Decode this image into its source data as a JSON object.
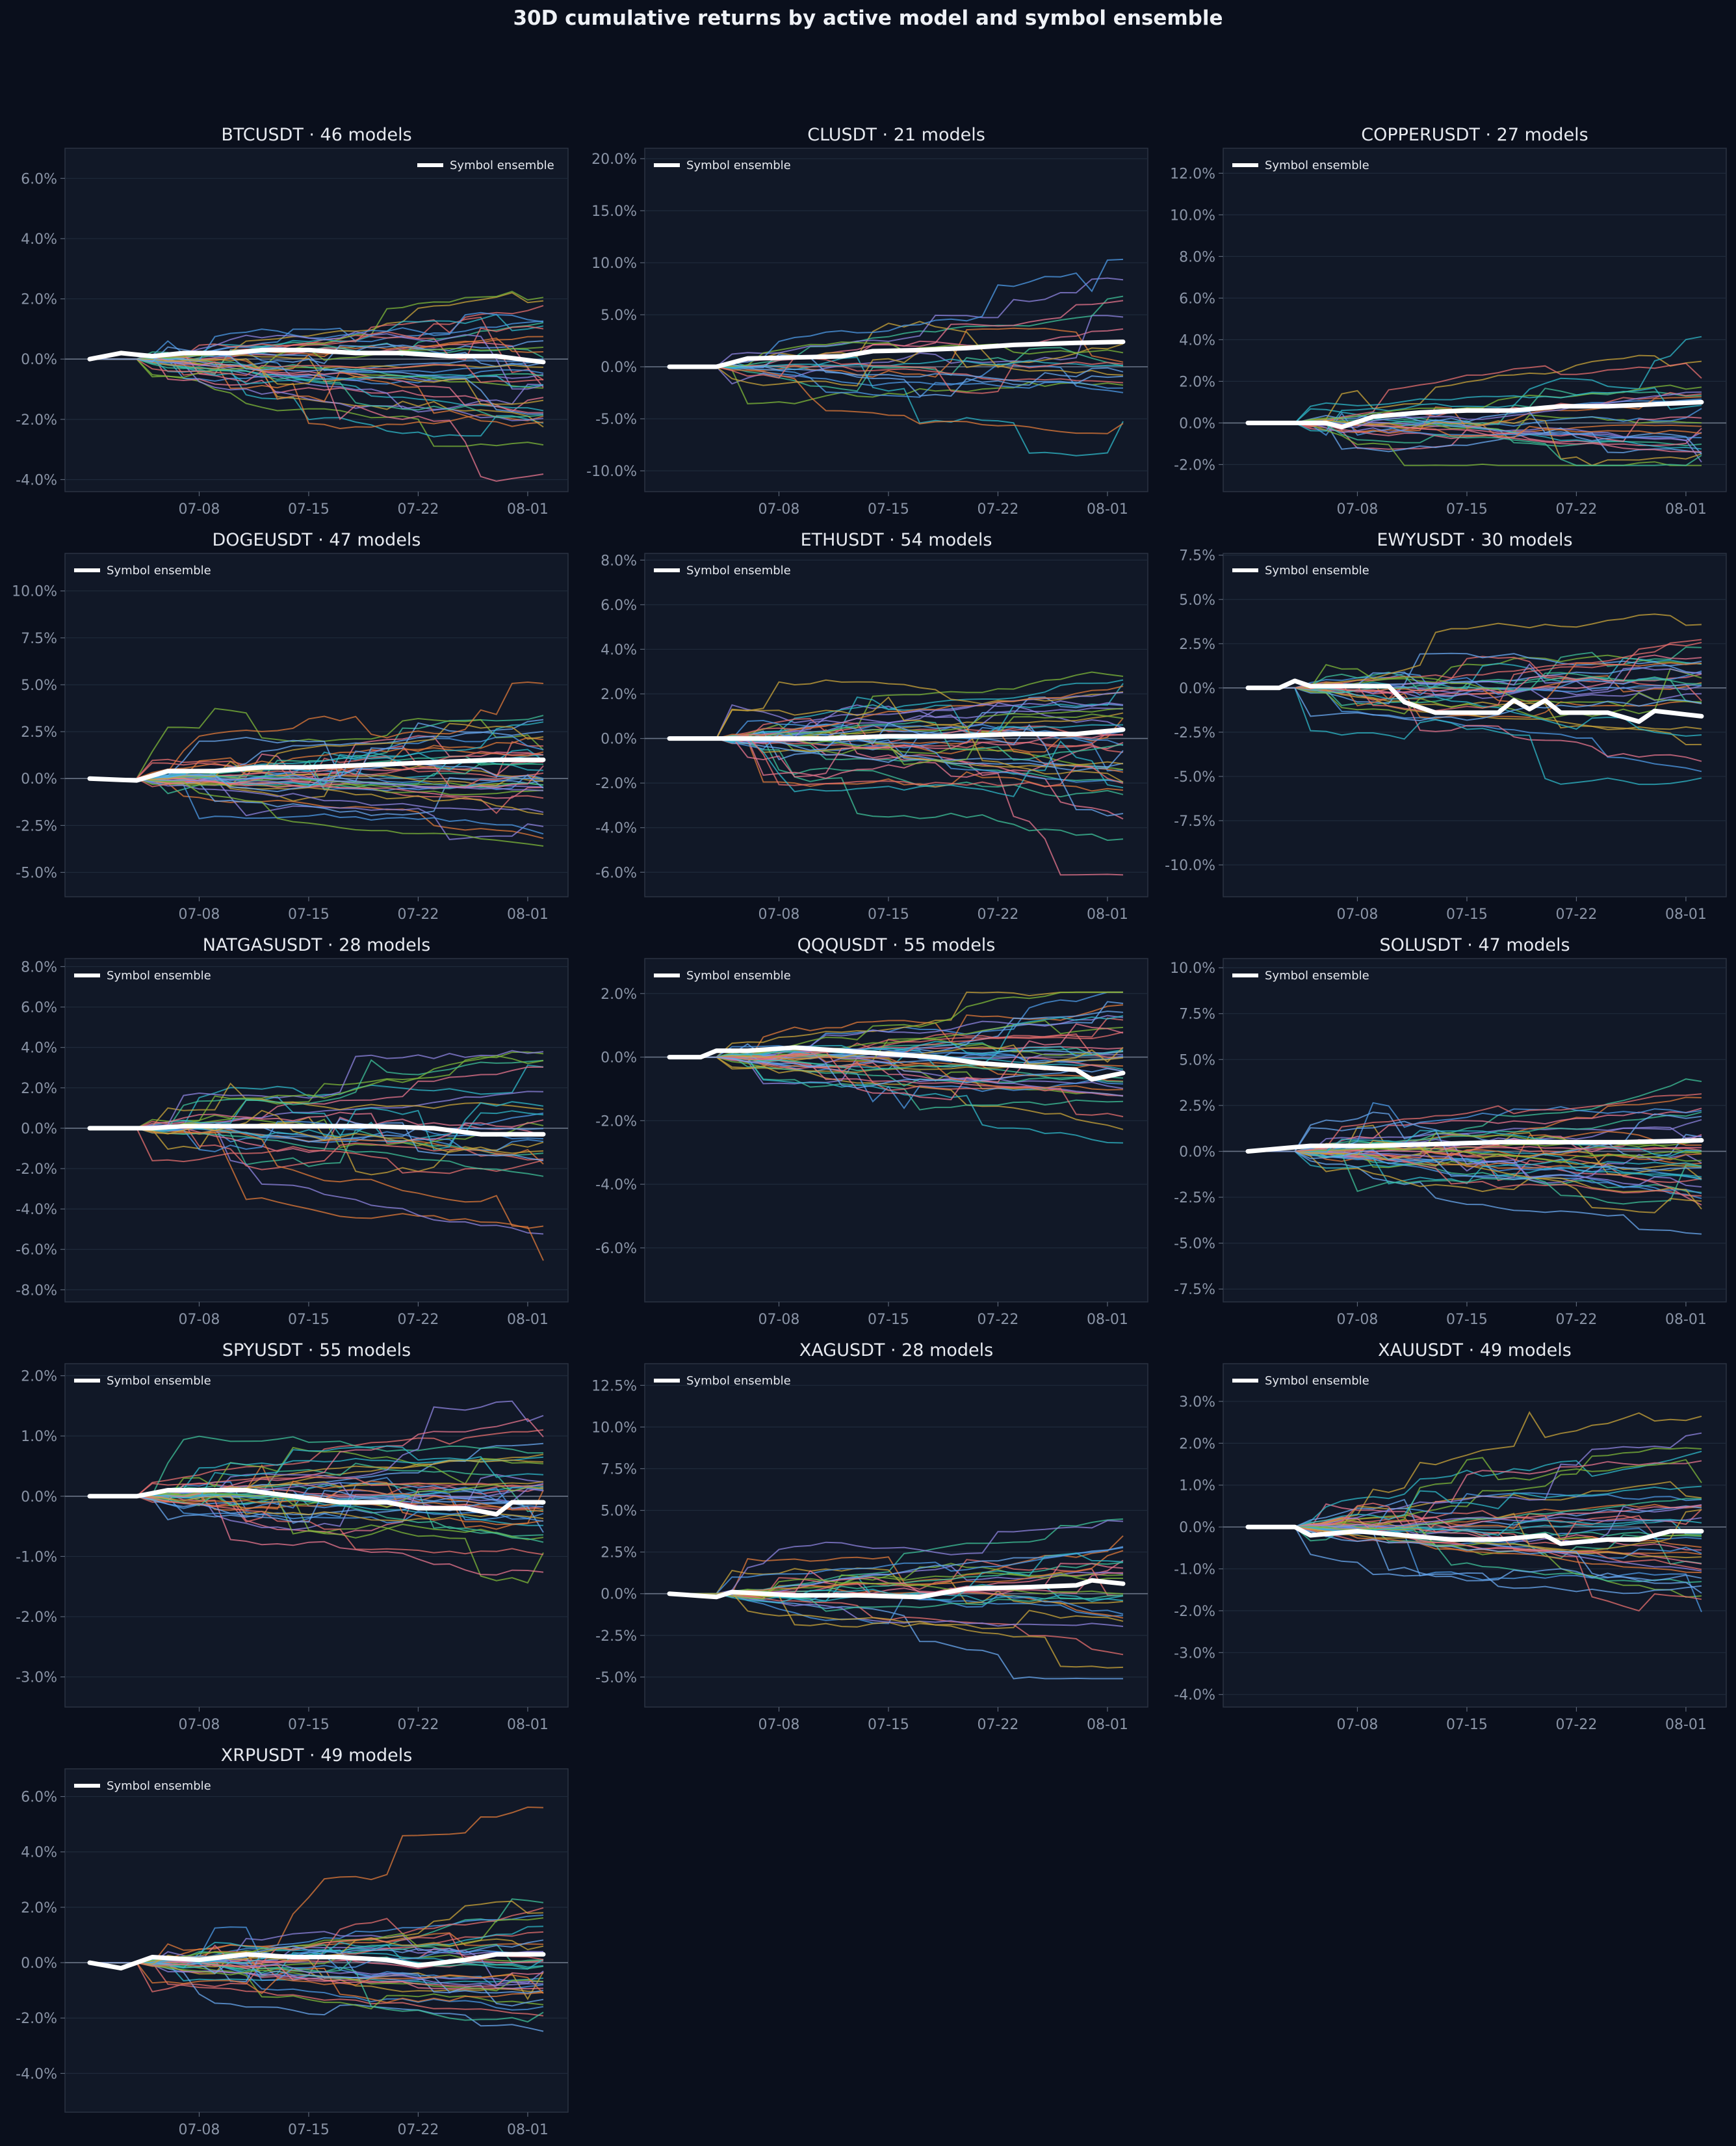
{
  "page_title": "30D cumulative returns by active model and symbol ensemble",
  "theme": {
    "background": "#0a0f1c",
    "panel": "#111827",
    "ensemble_color": "#ffffff",
    "palette": [
      "#4e9be8",
      "#e07a3a",
      "#3fc29a",
      "#e8758f",
      "#8f84e0",
      "#7fb83a",
      "#2fb8c9",
      "#c9a43a",
      "#e76f6f",
      "#6aa8f0"
    ]
  },
  "chart_data": [
    {
      "type": "line",
      "title": "BTCUSDT · 46 models",
      "model_count": 46,
      "x": [
        "07-08",
        "07-15",
        "07-22",
        "08-01"
      ],
      "ylim": [
        -4.4,
        7.0
      ],
      "yticks": [
        "-4.0%",
        "-2.0%",
        "0.0%",
        "2.0%",
        "4.0%",
        "6.0%"
      ],
      "legend": "Symbol ensemble",
      "legend_position": "top-right",
      "ensemble_path": [
        [
          0,
          0
        ],
        [
          2,
          0.2
        ],
        [
          4,
          0.1
        ],
        [
          6,
          0.2
        ],
        [
          9,
          0.2
        ],
        [
          11,
          0.3
        ],
        [
          14,
          0.3
        ],
        [
          17,
          0.2
        ],
        [
          20,
          0.2
        ],
        [
          23,
          0.1
        ],
        [
          26,
          0.1
        ],
        [
          29,
          -0.1
        ]
      ]
    },
    {
      "type": "line",
      "title": "CLUSDT · 21 models",
      "model_count": 21,
      "x": [
        "07-08",
        "07-15",
        "07-22",
        "08-01"
      ],
      "ylim": [
        -12,
        21
      ],
      "yticks": [
        "-10.0%",
        "-5.0%",
        "0.0%",
        "5.0%",
        "10.0%",
        "15.0%",
        "20.0%"
      ],
      "legend": "Symbol ensemble",
      "legend_position": "top-left",
      "ensemble_path": [
        [
          0,
          0
        ],
        [
          3,
          0
        ],
        [
          5,
          0.8
        ],
        [
          8,
          0.9
        ],
        [
          11,
          1.0
        ],
        [
          13,
          1.5
        ],
        [
          16,
          1.6
        ],
        [
          19,
          1.8
        ],
        [
          22,
          2.1
        ],
        [
          26,
          2.3
        ],
        [
          29,
          2.4
        ]
      ]
    },
    {
      "type": "line",
      "title": "COPPERUSDT · 27 models",
      "model_count": 27,
      "x": [
        "07-08",
        "07-15",
        "07-22",
        "08-01"
      ],
      "ylim": [
        -3.3,
        13.2
      ],
      "yticks": [
        "-2.0%",
        "0.0%",
        "2.0%",
        "4.0%",
        "6.0%",
        "8.0%",
        "10.0%",
        "12.0%"
      ],
      "legend": "Symbol ensemble",
      "legend_position": "top-left",
      "ensemble_path": [
        [
          0,
          0
        ],
        [
          5,
          0
        ],
        [
          6,
          -0.2
        ],
        [
          8,
          0.3
        ],
        [
          11,
          0.5
        ],
        [
          14,
          0.6
        ],
        [
          17,
          0.6
        ],
        [
          20,
          0.8
        ],
        [
          23,
          0.8
        ],
        [
          26,
          0.9
        ],
        [
          29,
          1.0
        ]
      ]
    },
    {
      "type": "line",
      "title": "DOGEUSDT · 47 models",
      "model_count": 47,
      "x": [
        "07-08",
        "07-15",
        "07-22",
        "08-01"
      ],
      "ylim": [
        -6.3,
        12.0
      ],
      "yticks": [
        "-5.0%",
        "-2.5%",
        "0.0%",
        "2.5%",
        "5.0%",
        "7.5%",
        "10.0%"
      ],
      "legend": "Symbol ensemble",
      "legend_position": "top-left",
      "ensemble_path": [
        [
          0,
          0
        ],
        [
          3,
          -0.1
        ],
        [
          5,
          0.4
        ],
        [
          8,
          0.4
        ],
        [
          11,
          0.6
        ],
        [
          14,
          0.6
        ],
        [
          17,
          0.7
        ],
        [
          20,
          0.8
        ],
        [
          23,
          0.9
        ],
        [
          26,
          1.0
        ],
        [
          29,
          1.0
        ]
      ]
    },
    {
      "type": "line",
      "title": "ETHUSDT · 54 models",
      "model_count": 54,
      "x": [
        "07-08",
        "07-15",
        "07-22",
        "08-01"
      ],
      "ylim": [
        -7.1,
        8.3
      ],
      "yticks": [
        "-6.0%",
        "-4.0%",
        "-2.0%",
        "0.0%",
        "2.0%",
        "4.0%",
        "6.0%",
        "8.0%"
      ],
      "legend": "Symbol ensemble",
      "legend_position": "top-left",
      "ensemble_path": [
        [
          0,
          0
        ],
        [
          5,
          0
        ],
        [
          10,
          0
        ],
        [
          14,
          0.1
        ],
        [
          18,
          0.1
        ],
        [
          22,
          0.2
        ],
        [
          26,
          0.2
        ],
        [
          29,
          0.4
        ]
      ]
    },
    {
      "type": "line",
      "title": "EWYUSDT · 30 models",
      "model_count": 30,
      "x": [
        "07-08",
        "07-15",
        "07-22",
        "08-01"
      ],
      "ylim": [
        -11.8,
        7.6
      ],
      "yticks": [
        "-10.0%",
        "-7.5%",
        "-5.0%",
        "-2.5%",
        "0.0%",
        "2.5%",
        "5.0%",
        "7.5%"
      ],
      "legend": "Symbol ensemble",
      "legend_position": "top-left",
      "ensemble_path": [
        [
          0,
          0
        ],
        [
          2,
          0
        ],
        [
          3,
          0.4
        ],
        [
          4,
          0.1
        ],
        [
          9,
          0.1
        ],
        [
          10,
          -0.8
        ],
        [
          12,
          -1.4
        ],
        [
          16,
          -1.4
        ],
        [
          17,
          -0.7
        ],
        [
          18,
          -1.2
        ],
        [
          19,
          -0.7
        ],
        [
          20,
          -1.4
        ],
        [
          23,
          -1.4
        ],
        [
          25,
          -1.9
        ],
        [
          26,
          -1.3
        ],
        [
          29,
          -1.6
        ]
      ]
    },
    {
      "type": "line",
      "title": "NATGASUSDT · 28 models",
      "model_count": 28,
      "x": [
        "07-08",
        "07-15",
        "07-22",
        "08-01"
      ],
      "ylim": [
        -8.6,
        8.4
      ],
      "yticks": [
        "-8.0%",
        "-6.0%",
        "-4.0%",
        "-2.0%",
        "0.0%",
        "2.0%",
        "4.0%",
        "6.0%",
        "8.0%"
      ],
      "legend": "Symbol ensemble",
      "legend_position": "top-left",
      "ensemble_path": [
        [
          0,
          0
        ],
        [
          4,
          0
        ],
        [
          6,
          0.1
        ],
        [
          12,
          0.1
        ],
        [
          18,
          0.1
        ],
        [
          22,
          0
        ],
        [
          25,
          -0.3
        ],
        [
          29,
          -0.3
        ]
      ]
    },
    {
      "type": "line",
      "title": "QQQUSDT · 55 models",
      "model_count": 55,
      "x": [
        "07-08",
        "07-15",
        "07-22",
        "08-01"
      ],
      "ylim": [
        -7.7,
        3.1
      ],
      "yticks": [
        "-6.0%",
        "-4.0%",
        "-2.0%",
        "0.0%",
        "2.0%"
      ],
      "legend": "Symbol ensemble",
      "legend_position": "top-left",
      "ensemble_path": [
        [
          0,
          0
        ],
        [
          2,
          0
        ],
        [
          3,
          0.2
        ],
        [
          5,
          0.2
        ],
        [
          8,
          0.3
        ],
        [
          11,
          0.2
        ],
        [
          14,
          0.1
        ],
        [
          17,
          0
        ],
        [
          20,
          -0.2
        ],
        [
          23,
          -0.3
        ],
        [
          26,
          -0.4
        ],
        [
          27,
          -0.7
        ],
        [
          29,
          -0.5
        ]
      ]
    },
    {
      "type": "line",
      "title": "SOLUSDT · 47 models",
      "model_count": 47,
      "x": [
        "07-08",
        "07-15",
        "07-22",
        "08-01"
      ],
      "ylim": [
        -8.2,
        10.5
      ],
      "yticks": [
        "-7.5%",
        "-5.0%",
        "-2.5%",
        "0.0%",
        "2.5%",
        "5.0%",
        "7.5%",
        "10.0%"
      ],
      "legend": "Symbol ensemble",
      "legend_position": "top-left",
      "ensemble_path": [
        [
          0,
          0
        ],
        [
          4,
          0.3
        ],
        [
          8,
          0.3
        ],
        [
          12,
          0.4
        ],
        [
          16,
          0.5
        ],
        [
          20,
          0.5
        ],
        [
          24,
          0.5
        ],
        [
          29,
          0.6
        ]
      ]
    },
    {
      "type": "line",
      "title": "SPYUSDT · 55 models",
      "model_count": 55,
      "x": [
        "07-08",
        "07-15",
        "07-22",
        "08-01"
      ],
      "ylim": [
        -3.5,
        2.2
      ],
      "yticks": [
        "-3.0%",
        "-2.0%",
        "-1.0%",
        "0.0%",
        "1.0%",
        "2.0%"
      ],
      "legend": "Symbol ensemble",
      "legend_position": "top-left",
      "ensemble_path": [
        [
          0,
          0
        ],
        [
          3,
          0
        ],
        [
          5,
          0.1
        ],
        [
          7,
          0.1
        ],
        [
          10,
          0.1
        ],
        [
          13,
          0
        ],
        [
          16,
          -0.1
        ],
        [
          19,
          -0.1
        ],
        [
          21,
          -0.2
        ],
        [
          24,
          -0.2
        ],
        [
          26,
          -0.3
        ],
        [
          27,
          -0.1
        ],
        [
          29,
          -0.1
        ]
      ]
    },
    {
      "type": "line",
      "title": "XAGUSDT · 28 models",
      "model_count": 28,
      "x": [
        "07-08",
        "07-15",
        "07-22",
        "08-01"
      ],
      "ylim": [
        -6.8,
        13.8
      ],
      "yticks": [
        "-5.0%",
        "-2.5%",
        "0.0%",
        "2.5%",
        "5.0%",
        "7.5%",
        "10.0%",
        "12.5%"
      ],
      "legend": "Symbol ensemble",
      "legend_position": "top-left",
      "ensemble_path": [
        [
          0,
          0
        ],
        [
          3,
          -0.2
        ],
        [
          4,
          0.1
        ],
        [
          8,
          -0.1
        ],
        [
          12,
          -0.1
        ],
        [
          16,
          -0.2
        ],
        [
          19,
          0.3
        ],
        [
          23,
          0.4
        ],
        [
          26,
          0.5
        ],
        [
          27,
          0.8
        ],
        [
          29,
          0.6
        ]
      ]
    },
    {
      "type": "line",
      "title": "XAUUSDT · 49 models",
      "model_count": 49,
      "x": [
        "07-08",
        "07-15",
        "07-22",
        "08-01"
      ],
      "ylim": [
        -4.3,
        3.9
      ],
      "yticks": [
        "-4.0%",
        "-3.0%",
        "-2.0%",
        "-1.0%",
        "0.0%",
        "1.0%",
        "2.0%",
        "3.0%"
      ],
      "legend": "Symbol ensemble",
      "legend_position": "top-left",
      "ensemble_path": [
        [
          0,
          0
        ],
        [
          3,
          0
        ],
        [
          4,
          -0.2
        ],
        [
          7,
          -0.1
        ],
        [
          10,
          -0.2
        ],
        [
          13,
          -0.3
        ],
        [
          16,
          -0.3
        ],
        [
          19,
          -0.2
        ],
        [
          20,
          -0.4
        ],
        [
          23,
          -0.3
        ],
        [
          25,
          -0.3
        ],
        [
          27,
          -0.1
        ],
        [
          29,
          -0.1
        ]
      ]
    },
    {
      "type": "line",
      "title": "XRPUSDT · 49 models",
      "model_count": 49,
      "x": [
        "07-08",
        "07-15",
        "07-22",
        "08-01"
      ],
      "ylim": [
        -5.4,
        7.0
      ],
      "yticks": [
        "-4.0%",
        "-2.0%",
        "0.0%",
        "2.0%",
        "4.0%",
        "6.0%"
      ],
      "legend": "Symbol ensemble",
      "legend_position": "top-left",
      "ensemble_path": [
        [
          0,
          0
        ],
        [
          2,
          -0.2
        ],
        [
          4,
          0.2
        ],
        [
          7,
          0.1
        ],
        [
          10,
          0.3
        ],
        [
          13,
          0.2
        ],
        [
          16,
          0.2
        ],
        [
          19,
          0.1
        ],
        [
          21,
          -0.1
        ],
        [
          24,
          0.1
        ],
        [
          26,
          0.3
        ],
        [
          29,
          0.3
        ]
      ]
    }
  ]
}
